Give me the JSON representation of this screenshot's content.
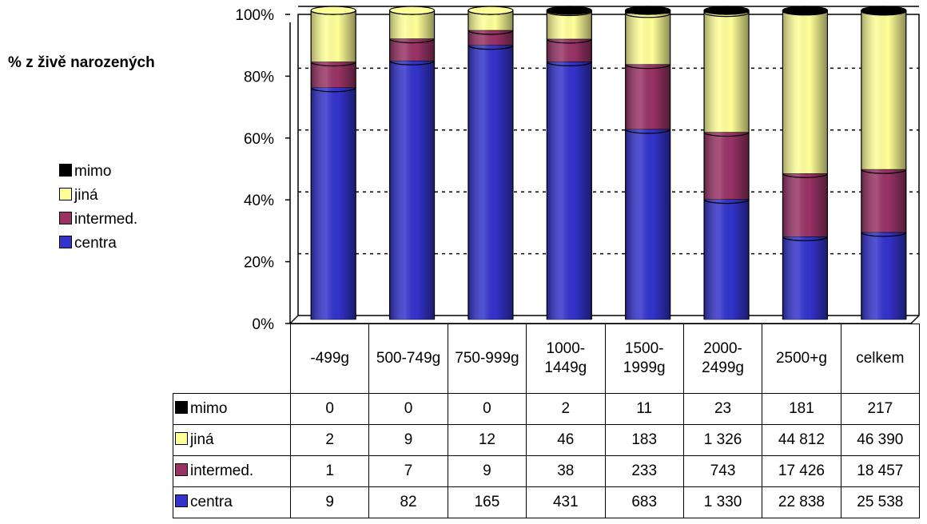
{
  "chart_data": {
    "type": "bar",
    "stacked": "percent",
    "title": "% z živě narozených",
    "categories": [
      "-499g",
      "500-749g",
      "750-999g",
      "1000-1449g",
      "1500-1999g",
      "2000-2499g",
      "2500+g",
      "celkem"
    ],
    "series": [
      {
        "name": "mimo",
        "color": "#000000",
        "values": [
          0,
          0,
          0,
          2,
          11,
          23,
          181,
          217
        ],
        "value_labels": [
          "0",
          "0",
          "0",
          "2",
          "11",
          "23",
          "181",
          "217"
        ]
      },
      {
        "name": "jiná",
        "color": "#ffff99",
        "values": [
          2,
          9,
          12,
          46,
          183,
          1326,
          44812,
          46390
        ],
        "value_labels": [
          "2",
          "9",
          "12",
          "46",
          "183",
          "1 326",
          "44 812",
          "46 390"
        ]
      },
      {
        "name": "intermed.",
        "color": "#993366",
        "values": [
          1,
          7,
          9,
          38,
          233,
          743,
          17426,
          18457
        ],
        "value_labels": [
          "1",
          "7",
          "9",
          "38",
          "233",
          "743",
          "17 426",
          "18 457"
        ]
      },
      {
        "name": "centra",
        "color": "#3333cc",
        "values": [
          9,
          82,
          165,
          431,
          683,
          1330,
          22838,
          25538
        ],
        "value_labels": [
          "9",
          "82",
          "165",
          "431",
          "683",
          "1 330",
          "22 838",
          "25 538"
        ]
      }
    ],
    "ylim": [
      0,
      100
    ],
    "yticks": [
      {
        "value": 0,
        "label": "0%"
      },
      {
        "value": 20,
        "label": "20%"
      },
      {
        "value": 40,
        "label": "40%"
      },
      {
        "value": 60,
        "label": "60%"
      },
      {
        "value": 80,
        "label": "80%"
      },
      {
        "value": 100,
        "label": "100%"
      }
    ],
    "grid": true
  }
}
